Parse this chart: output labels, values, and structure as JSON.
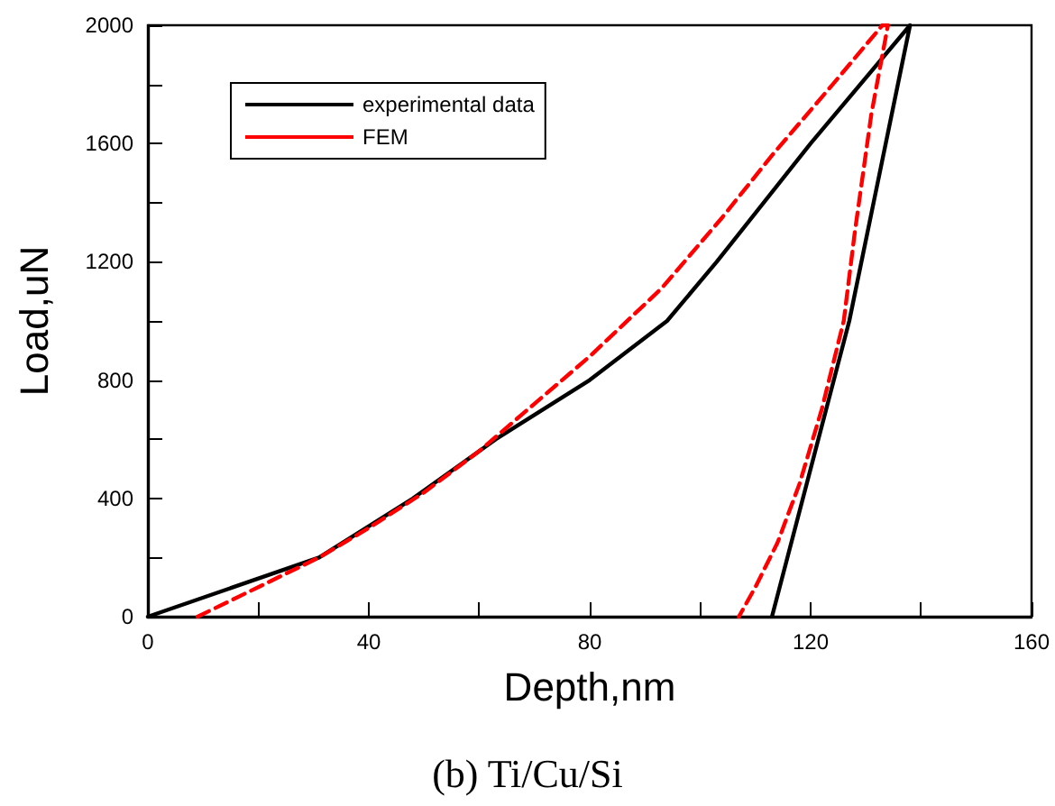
{
  "chart_data": {
    "type": "line",
    "title": "(b) Ti/Cu/Si",
    "xlabel": "Depth,nm",
    "ylabel": "Load,uN",
    "series": [
      {
        "name": "experimental data",
        "color": "#000000",
        "line_style": "solid",
        "x": [
          0,
          31,
          48,
          63,
          80,
          94,
          103,
          120,
          138,
          127,
          113
        ],
        "values": [
          0,
          200,
          400,
          600,
          800,
          1000,
          1200,
          1600,
          2000,
          1000,
          0
        ]
      },
      {
        "name": "FEM",
        "color": "#ff0000",
        "line_style": "dashed",
        "x": [
          9,
          20,
          31,
          40,
          50,
          60,
          70,
          80,
          93,
          104,
          113,
          124,
          133,
          134,
          131,
          128,
          126,
          122,
          118,
          114,
          110,
          107
        ],
        "values": [
          0,
          100,
          200,
          300,
          420,
          560,
          720,
          880,
          1110,
          1350,
          1560,
          1800,
          2000,
          2000,
          1700,
          1300,
          1000,
          700,
          450,
          250,
          100,
          0
        ]
      }
    ],
    "xlim": [
      0,
      160
    ],
    "ylim": [
      0,
      2000
    ],
    "xticks": [
      0,
      {
        "value": 20,
        "label": null
      },
      40,
      {
        "value": 60,
        "label": null
      },
      80,
      {
        "value": 100,
        "label": null
      },
      120,
      {
        "value": 140,
        "label": null
      },
      160
    ],
    "yticks": [
      0,
      {
        "value": 200,
        "label": null
      },
      400,
      {
        "value": 600,
        "label": null
      },
      800,
      {
        "value": 1000,
        "label": null
      },
      1200,
      {
        "value": 1400,
        "label": null
      },
      1600,
      {
        "value": 1800,
        "label": null
      },
      2000
    ],
    "grid": false,
    "legend": "top left",
    "marker": "none"
  }
}
